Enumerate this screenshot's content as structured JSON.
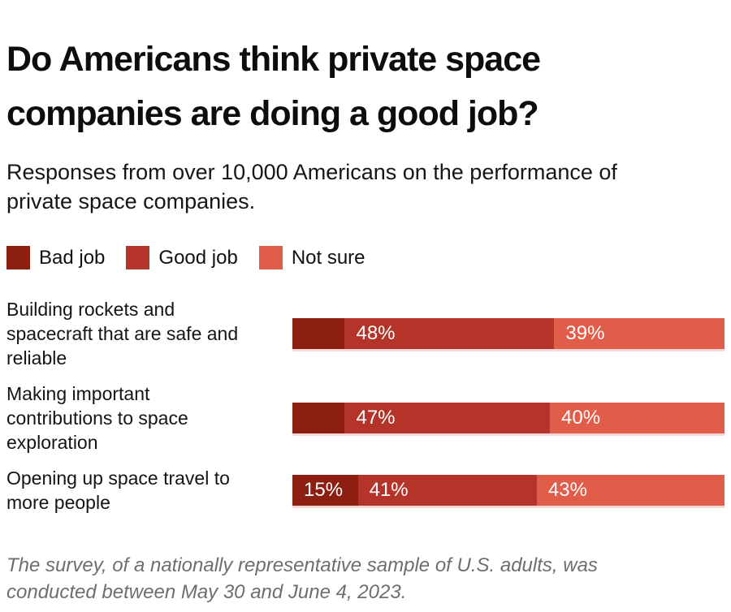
{
  "chart_data": {
    "type": "bar",
    "orientation": "horizontal",
    "stacked": true,
    "title": "Do Americans think private space companies are doing a good job?",
    "subtitle": "Responses from over 10,000 Americans on the performance of private space companies.",
    "footnote": "The survey, of a nationally representative sample of U.S. adults, was conducted between May 30 and June 4, 2023.",
    "categories": [
      "Building rockets and spacecraft that are safe and reliable",
      "Making important contributions to space exploration",
      "Opening up space travel to more people"
    ],
    "series": [
      {
        "name": "Bad job",
        "color": "#8c1e12",
        "values": [
          12,
          12,
          15
        ]
      },
      {
        "name": "Good job",
        "color": "#b43429",
        "values": [
          48,
          47,
          41
        ]
      },
      {
        "name": "Not sure",
        "color": "#e15c49",
        "values": [
          39,
          40,
          43
        ]
      }
    ],
    "xlim": [
      0,
      99
    ],
    "grid": false,
    "legend_position": "top",
    "value_label_format": "percent",
    "value_labels_visible": [
      "48%",
      "39%",
      "47%",
      "40%",
      "15%",
      "41%",
      "43%"
    ]
  },
  "header": {
    "title_lines": [
      "Do Americans think private space",
      "companies are doing a good job?"
    ],
    "subtitle_lines": [
      "Responses from over 10,000 Americans on the performance of",
      "private space companies."
    ]
  },
  "legend": {
    "items": [
      {
        "label": "Bad job",
        "color": "#8c1e12"
      },
      {
        "label": "Good job",
        "color": "#b43429"
      },
      {
        "label": "Not sure",
        "color": "#e15c49"
      }
    ]
  },
  "rows": [
    {
      "label_lines": [
        "Building rockets and",
        "spacecraft that are safe and",
        "reliable"
      ],
      "segments": [
        {
          "series": "Bad job",
          "value": 12,
          "label": ""
        },
        {
          "series": "Good job",
          "value": 48,
          "label": "48%"
        },
        {
          "series": "Not sure",
          "value": 39,
          "label": "39%"
        }
      ]
    },
    {
      "label_lines": [
        "Making important",
        "contributions to space",
        "exploration"
      ],
      "segments": [
        {
          "series": "Bad job",
          "value": 12,
          "label": ""
        },
        {
          "series": "Good job",
          "value": 47,
          "label": "47%"
        },
        {
          "series": "Not sure",
          "value": 40,
          "label": "40%"
        }
      ]
    },
    {
      "label_lines": [
        "Opening up space travel to",
        "more people"
      ],
      "segments": [
        {
          "series": "Bad job",
          "value": 15,
          "label": "15%"
        },
        {
          "series": "Good job",
          "value": 41,
          "label": "41%"
        },
        {
          "series": "Not sure",
          "value": 43,
          "label": "43%"
        }
      ]
    }
  ],
  "footer": {
    "note_lines": [
      "The survey, of a nationally representative sample of U.S. adults, was",
      "conducted between May 30 and June 4, 2023."
    ]
  }
}
